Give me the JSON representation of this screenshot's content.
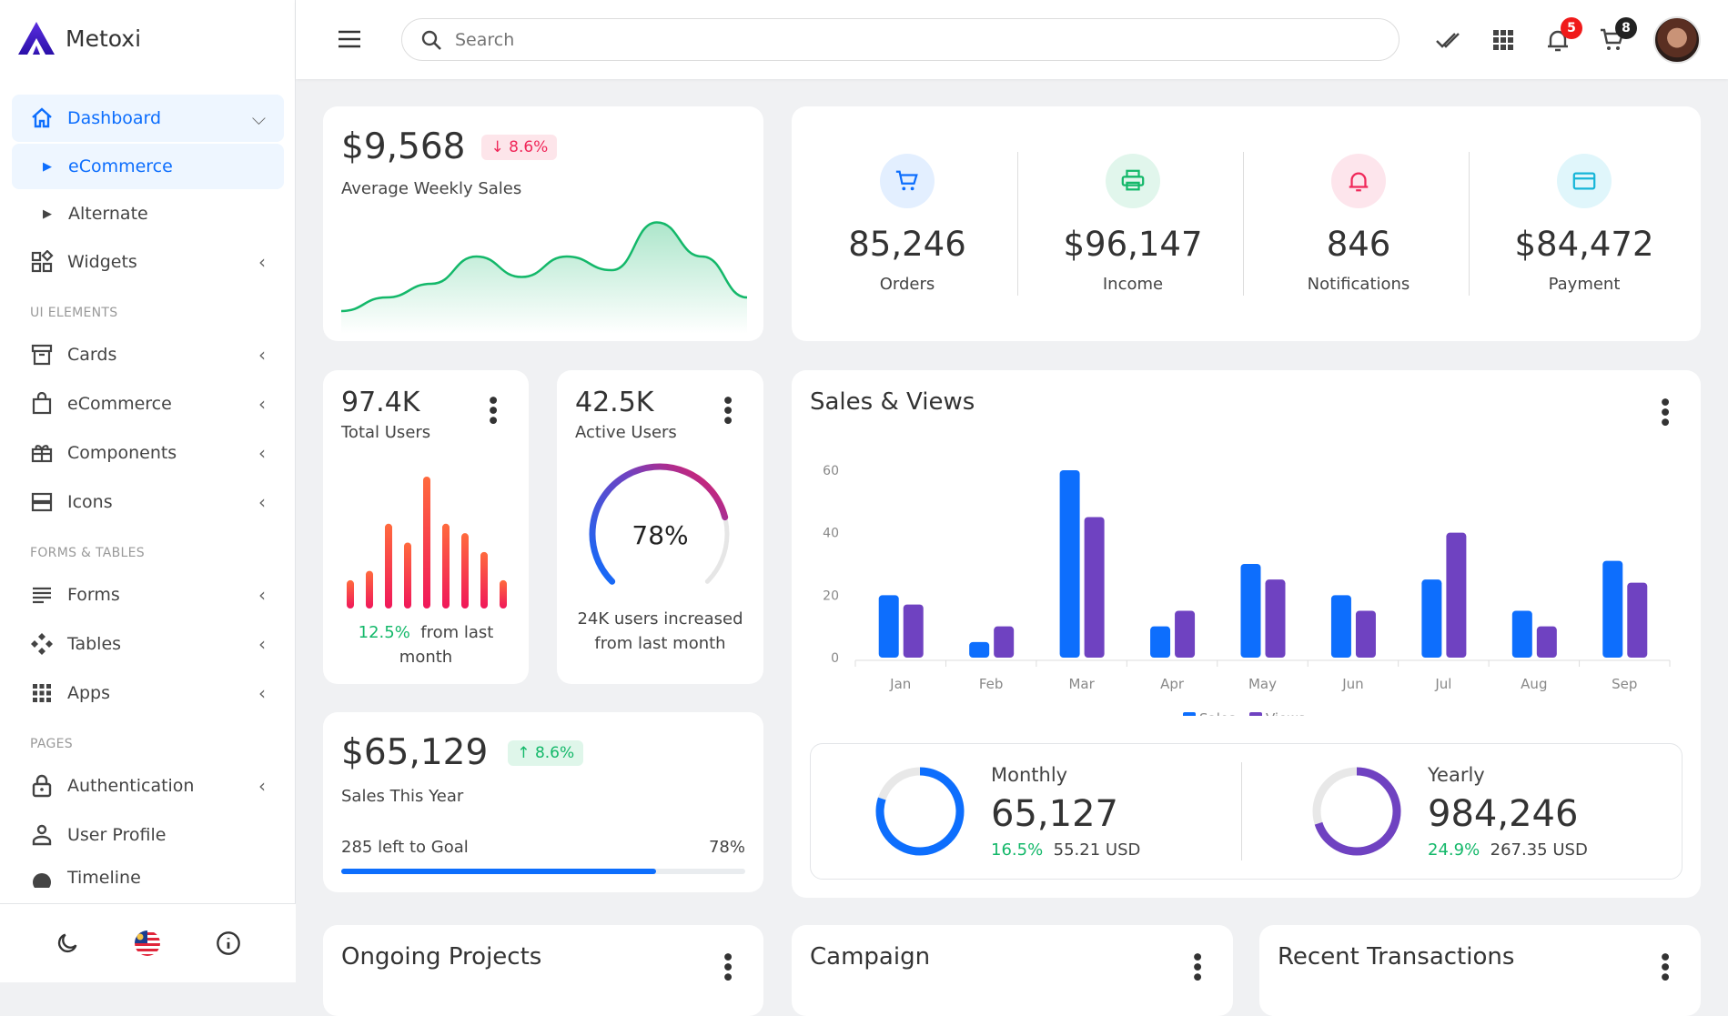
{
  "brand": {
    "name": "Metoxi"
  },
  "sidebar": {
    "items": [
      {
        "label": "Dashboard",
        "icon": "home-icon",
        "active": true
      },
      {
        "label": "eCommerce",
        "sub": true,
        "active": true
      },
      {
        "label": "Alternate",
        "sub": true
      },
      {
        "label": "Widgets",
        "icon": "widgets-icon"
      },
      {
        "section": "UI ELEMENTS"
      },
      {
        "label": "Cards",
        "icon": "archive-icon"
      },
      {
        "label": "eCommerce",
        "icon": "shopping-bag-icon"
      },
      {
        "label": "Components",
        "icon": "gift-icon"
      },
      {
        "label": "Icons",
        "icon": "server-icon"
      },
      {
        "section": "FORMS & TABLES"
      },
      {
        "label": "Forms",
        "icon": "list-icon"
      },
      {
        "label": "Tables",
        "icon": "diamond-grid-icon"
      },
      {
        "label": "Apps",
        "icon": "grid-icon"
      },
      {
        "section": "PAGES"
      },
      {
        "label": "Authentication",
        "icon": "lock-icon"
      },
      {
        "label": "User Profile",
        "icon": "user-icon"
      },
      {
        "label": "Timeline",
        "icon": "timeline-icon"
      }
    ]
  },
  "header": {
    "search_placeholder": "Search",
    "notifications_count": "5",
    "cart_count": "8"
  },
  "weekly": {
    "value": "$9,568",
    "change": "8.6%",
    "label": "Average Weekly Sales",
    "accent": "#14b86a",
    "series": [
      2,
      4,
      6,
      10,
      7,
      10,
      8,
      15,
      10,
      4
    ]
  },
  "stats": [
    {
      "value": "85,246",
      "label": "Orders",
      "icon": "cart-icon",
      "color": "#0d6efd",
      "bg": "#e3efff"
    },
    {
      "value": "$96,147",
      "label": "Income",
      "icon": "printer-icon",
      "color": "#14b86a",
      "bg": "#e1f6ec"
    },
    {
      "value": "846",
      "label": "Notifications",
      "icon": "bell-icon",
      "color": "#f0285a",
      "bg": "#fde5ec"
    },
    {
      "value": "$84,472",
      "label": "Payment",
      "icon": "credit-card-icon",
      "color": "#17b5d8",
      "bg": "#e0f6fb"
    }
  ],
  "total_users": {
    "value": "97.4K",
    "label": "Total Users",
    "change": "12.5%",
    "change_text": "from last month",
    "bars": [
      3,
      4,
      9,
      7,
      14,
      9,
      8,
      6,
      3
    ]
  },
  "active_users": {
    "value": "42.5K",
    "label": "Active Users",
    "percent": 78,
    "percent_label": "78%",
    "text": "24K users increased from last month"
  },
  "sales_year": {
    "value": "$65,129",
    "change": "8.6%",
    "label": "Sales This Year",
    "goal_text": "285 left to Goal",
    "progress": 78,
    "progress_label": "78%"
  },
  "chart_data": {
    "type": "bar",
    "title": "Sales & Views",
    "categories": [
      "Jan",
      "Feb",
      "Mar",
      "Apr",
      "May",
      "Jun",
      "Jul",
      "Aug",
      "Sep"
    ],
    "series": [
      {
        "name": "Sales",
        "color": "#0d6efd",
        "values": [
          20,
          5,
          60,
          10,
          30,
          20,
          25,
          15,
          31
        ]
      },
      {
        "name": "Views",
        "color": "#6f42c1",
        "values": [
          17,
          10,
          45,
          15,
          25,
          15,
          40,
          10,
          24
        ]
      }
    ],
    "yticks": [
      0,
      20,
      40,
      60
    ],
    "ylim": [
      0,
      60
    ],
    "legend": "bottom-center",
    "grid": false
  },
  "summary": [
    {
      "label": "Monthly",
      "value": "65,127",
      "change": "16.5%",
      "usd": "55.21 USD",
      "color": "#0d6efd",
      "percent": 80
    },
    {
      "label": "Yearly",
      "value": "984,246",
      "change": "24.9%",
      "usd": "267.35 USD",
      "color": "#6f42c1",
      "percent": 70
    }
  ],
  "bottom": [
    "Ongoing Projects",
    "Campaign",
    "Recent Transactions"
  ]
}
